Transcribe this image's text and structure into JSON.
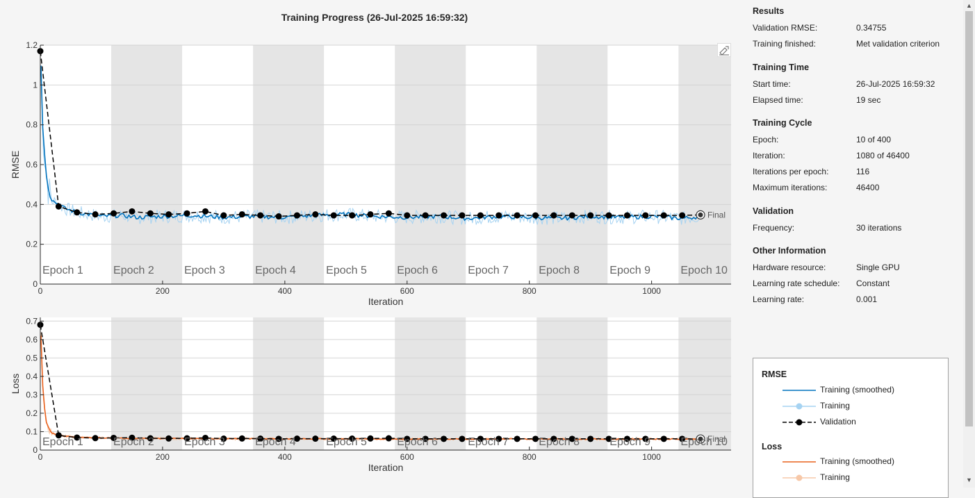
{
  "title": "Training Progress (26-Jul-2025 16:59:32)",
  "info": {
    "results": {
      "heading": "Results",
      "rows": [
        {
          "label": "Validation RMSE:",
          "value": "0.34755"
        },
        {
          "label": "Training finished:",
          "value": "Met validation criterion"
        }
      ]
    },
    "training_time": {
      "heading": "Training Time",
      "rows": [
        {
          "label": "Start time:",
          "value": "26-Jul-2025 16:59:32"
        },
        {
          "label": "Elapsed time:",
          "value": "19 sec"
        }
      ]
    },
    "training_cycle": {
      "heading": "Training Cycle",
      "rows": [
        {
          "label": "Epoch:",
          "value": "10 of 400"
        },
        {
          "label": "Iteration:",
          "value": "1080 of 46400"
        },
        {
          "label": "Iterations per epoch:",
          "value": "116"
        },
        {
          "label": "Maximum iterations:",
          "value": "46400"
        }
      ]
    },
    "validation": {
      "heading": "Validation",
      "rows": [
        {
          "label": "Frequency:",
          "value": "30 iterations"
        }
      ]
    },
    "other": {
      "heading": "Other Information",
      "rows": [
        {
          "label": "Hardware resource:",
          "value": "Single GPU"
        },
        {
          "label": "Learning rate schedule:",
          "value": "Constant"
        },
        {
          "label": "Learning rate:",
          "value": "0.001"
        }
      ]
    }
  },
  "legend": {
    "rmse_heading": "RMSE",
    "rmse_items": [
      "Training (smoothed)",
      "Training",
      "Validation"
    ],
    "loss_heading": "Loss",
    "loss_items": [
      "Training (smoothed)",
      "Training"
    ]
  },
  "colors": {
    "rmse_smoothed": "#0072bd",
    "rmse_raw": "#a6d3f2",
    "loss_smoothed": "#e8601c",
    "loss_raw": "#f7c8a8",
    "validation": "#000000",
    "epoch_band": "#e5e5e5"
  },
  "icons": {
    "export": "export-icon",
    "final_marker": "final-marker-icon",
    "scroll_up": "scroll-up-icon",
    "scroll_down": "scroll-down-icon"
  },
  "chart_data": [
    {
      "type": "line",
      "name": "rmse-plot",
      "xlabel": "Iteration",
      "ylabel": "RMSE",
      "xlim": [
        0,
        1130
      ],
      "ylim": [
        0,
        1.2
      ],
      "xticks": [
        0,
        200,
        400,
        600,
        800,
        1000
      ],
      "yticks": [
        0,
        0.2,
        0.4,
        0.6,
        0.8,
        1,
        1.2
      ],
      "ytick_labels": [
        "0",
        "0.2",
        "0.4",
        "0.6",
        "0.8",
        "1",
        "1.2"
      ],
      "iterations_per_epoch": 116,
      "epoch_labels": [
        "Epoch 1",
        "Epoch 2",
        "Epoch 3",
        "Epoch 4",
        "Epoch 5",
        "Epoch 6",
        "Epoch 7",
        "Epoch 8",
        "Epoch 9",
        "Epoch 10"
      ],
      "final_label": "Final",
      "smoothed": {
        "x": [
          1,
          3,
          6,
          10,
          15,
          20,
          30,
          40,
          60,
          80,
          100,
          130,
          160,
          200,
          250,
          300,
          350,
          400,
          450,
          500,
          550,
          600,
          650,
          700,
          750,
          800,
          850,
          900,
          950,
          1000,
          1050,
          1080
        ],
        "y": [
          1.1,
          0.85,
          0.68,
          0.55,
          0.45,
          0.42,
          0.4,
          0.38,
          0.36,
          0.35,
          0.34,
          0.345,
          0.335,
          0.34,
          0.345,
          0.335,
          0.34,
          0.335,
          0.345,
          0.35,
          0.34,
          0.335,
          0.34,
          0.33,
          0.34,
          0.335,
          0.33,
          0.34,
          0.335,
          0.34,
          0.33,
          0.34
        ]
      },
      "validation": {
        "x": [
          0,
          30,
          60,
          90,
          120,
          150,
          180,
          210,
          240,
          270,
          300,
          330,
          360,
          390,
          420,
          450,
          480,
          510,
          540,
          570,
          600,
          630,
          660,
          690,
          720,
          750,
          780,
          810,
          840,
          870,
          900,
          930,
          960,
          990,
          1020,
          1050,
          1080
        ],
        "y": [
          1.17,
          0.39,
          0.36,
          0.35,
          0.355,
          0.365,
          0.355,
          0.35,
          0.355,
          0.365,
          0.345,
          0.35,
          0.345,
          0.34,
          0.345,
          0.35,
          0.345,
          0.345,
          0.35,
          0.355,
          0.345,
          0.345,
          0.345,
          0.345,
          0.345,
          0.345,
          0.345,
          0.345,
          0.345,
          0.345,
          0.345,
          0.345,
          0.345,
          0.345,
          0.345,
          0.345,
          0.34755
        ]
      }
    },
    {
      "type": "line",
      "name": "loss-plot",
      "xlabel": "Iteration",
      "ylabel": "Loss",
      "xlim": [
        0,
        1130
      ],
      "ylim": [
        0,
        0.72
      ],
      "xticks": [
        0,
        200,
        400,
        600,
        800,
        1000
      ],
      "yticks": [
        0,
        0.1,
        0.2,
        0.3,
        0.4,
        0.5,
        0.6,
        0.7
      ],
      "ytick_labels": [
        "0",
        "0.1",
        "0.2",
        "0.3",
        "0.4",
        "0.5",
        "0.6",
        "0.7"
      ],
      "iterations_per_epoch": 116,
      "epoch_labels": [
        "Epoch 1",
        "Epoch 2",
        "Epoch 3",
        "Epoch 4",
        "Epoch 5",
        "Epoch 6",
        "Epoch 7",
        "Epoch 8",
        "Epoch 9",
        "Epoch 10"
      ],
      "final_label": "Final",
      "smoothed": {
        "x": [
          1,
          3,
          6,
          10,
          15,
          20,
          30,
          40,
          60,
          80,
          100,
          150,
          200,
          300,
          400,
          500,
          600,
          700,
          800,
          900,
          1000,
          1080
        ],
        "y": [
          0.62,
          0.4,
          0.25,
          0.15,
          0.11,
          0.09,
          0.08,
          0.075,
          0.07,
          0.068,
          0.066,
          0.064,
          0.063,
          0.062,
          0.061,
          0.061,
          0.06,
          0.06,
          0.06,
          0.06,
          0.06,
          0.06
        ]
      },
      "validation": {
        "x": [
          0,
          30,
          60,
          90,
          120,
          150,
          180,
          210,
          240,
          270,
          300,
          330,
          360,
          390,
          420,
          450,
          480,
          510,
          540,
          570,
          600,
          630,
          660,
          690,
          720,
          750,
          780,
          810,
          840,
          870,
          900,
          930,
          960,
          990,
          1020,
          1050,
          1080
        ],
        "y": [
          0.68,
          0.08,
          0.068,
          0.065,
          0.066,
          0.067,
          0.064,
          0.063,
          0.064,
          0.066,
          0.062,
          0.063,
          0.062,
          0.061,
          0.062,
          0.062,
          0.062,
          0.062,
          0.063,
          0.064,
          0.061,
          0.061,
          0.061,
          0.061,
          0.061,
          0.061,
          0.061,
          0.061,
          0.061,
          0.061,
          0.061,
          0.061,
          0.061,
          0.061,
          0.061,
          0.061,
          0.06
        ]
      }
    }
  ]
}
